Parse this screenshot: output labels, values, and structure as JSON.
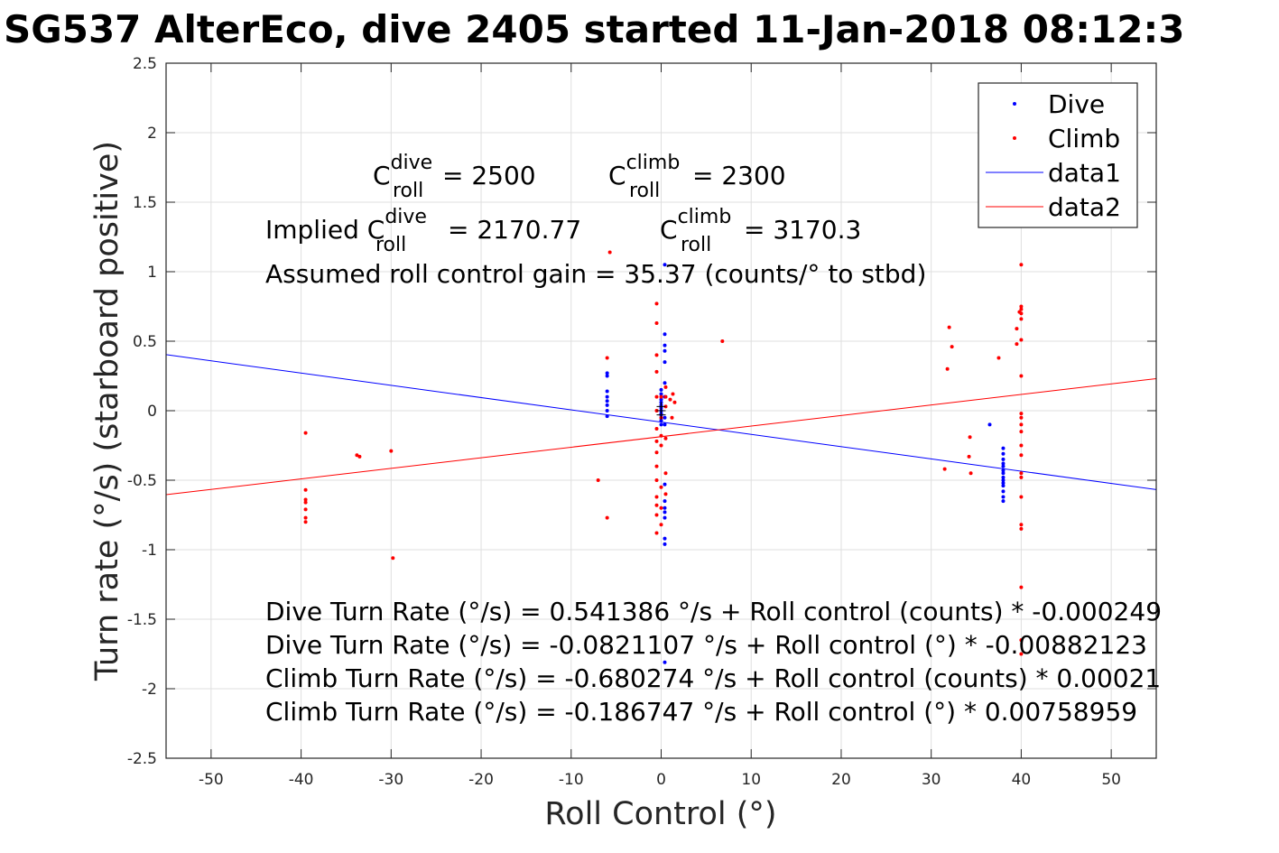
{
  "chart_data": {
    "type": "scatter",
    "title": "SG537 AlterEco, dive 2405 started 11-Jan-2018 08:12:3",
    "xlabel": "Roll Control (°)",
    "ylabel": "Turn rate (°/s) (starboard positive)",
    "xlim": [
      -55,
      55
    ],
    "ylim": [
      -2.5,
      2.5
    ],
    "xticks": [
      -50,
      -40,
      -30,
      -20,
      -10,
      0,
      10,
      20,
      30,
      40,
      50
    ],
    "yticks": [
      -2.5,
      -2,
      -1.5,
      -1,
      -0.5,
      0,
      0.5,
      1,
      1.5,
      2,
      2.5
    ],
    "xtick_labels": [
      "-50",
      "-40",
      "-30",
      "-20",
      "-10",
      "0",
      "10",
      "20",
      "30",
      "40",
      "50"
    ],
    "ytick_labels": [
      "-2.5",
      "-2",
      "-1.5",
      "-1",
      "-0.5",
      "0",
      "0.5",
      "1",
      "1.5",
      "2",
      "2.5"
    ],
    "grid": true,
    "legend_position": "top-right",
    "colors": {
      "dive": "#0000ff",
      "climb": "#ff0000",
      "data1": "#0000ff",
      "data2": "#ff0000",
      "center": "#000000"
    },
    "series": [
      {
        "name": "Dive",
        "kind": "points",
        "color": "#0000ff",
        "points": [
          [
            -6,
            0.27
          ],
          [
            -6,
            0.25
          ],
          [
            -6,
            0.14
          ],
          [
            -6,
            0.1
          ],
          [
            -6,
            0.07
          ],
          [
            -6,
            0.04
          ],
          [
            -6,
            0.0
          ],
          [
            -6,
            -0.04
          ],
          [
            0,
            0.15
          ],
          [
            0,
            0.12
          ],
          [
            0,
            0.08
          ],
          [
            0,
            0.04
          ],
          [
            0,
            0.02
          ],
          [
            0,
            0.0
          ],
          [
            0,
            -0.02
          ],
          [
            0,
            -0.05
          ],
          [
            0,
            -0.07
          ],
          [
            0,
            -0.1
          ],
          [
            0,
            0.06
          ],
          [
            0,
            -0.03
          ],
          [
            0.4,
            1.05
          ],
          [
            0.4,
            0.55
          ],
          [
            0.4,
            0.47
          ],
          [
            0.4,
            0.43
          ],
          [
            0.4,
            0.35
          ],
          [
            0.4,
            0.2
          ],
          [
            0.4,
            0.1
          ],
          [
            0.4,
            -0.05
          ],
          [
            0.4,
            -0.1
          ],
          [
            0.4,
            -0.53
          ],
          [
            0.4,
            -0.65
          ],
          [
            0.4,
            -0.7
          ],
          [
            0.4,
            -0.73
          ],
          [
            0.4,
            -0.77
          ],
          [
            0.4,
            -0.92
          ],
          [
            0.4,
            -0.96
          ],
          [
            0.4,
            -1.81
          ],
          [
            36.5,
            -0.1
          ],
          [
            38,
            -0.27
          ],
          [
            38,
            -0.31
          ],
          [
            38,
            -0.35
          ],
          [
            38,
            -0.38
          ],
          [
            38,
            -0.4
          ],
          [
            38,
            -0.43
          ],
          [
            38,
            -0.45
          ],
          [
            38,
            -0.48
          ],
          [
            38,
            -0.5
          ],
          [
            38,
            -0.52
          ],
          [
            38,
            -0.54
          ],
          [
            38,
            -0.58
          ],
          [
            38,
            -0.62
          ],
          [
            38,
            -0.65
          ]
        ]
      },
      {
        "name": "Climb",
        "kind": "points",
        "color": "#ff0000",
        "points": [
          [
            -39.5,
            -0.16
          ],
          [
            -39.5,
            -0.57
          ],
          [
            -39.5,
            -0.64
          ],
          [
            -39.5,
            -0.66
          ],
          [
            -39.5,
            -0.71
          ],
          [
            -39.5,
            -0.77
          ],
          [
            -39.5,
            -0.8
          ],
          [
            -33.8,
            -0.32
          ],
          [
            -33.5,
            -0.33
          ],
          [
            -30,
            -0.29
          ],
          [
            -29.8,
            -1.06
          ],
          [
            -7,
            -0.5
          ],
          [
            -6,
            0.38
          ],
          [
            -6,
            -0.77
          ],
          [
            -5.7,
            1.14
          ],
          [
            -0.5,
            0.77
          ],
          [
            -0.5,
            0.63
          ],
          [
            -0.5,
            0.4
          ],
          [
            -0.5,
            0.28
          ],
          [
            -0.5,
            0.1
          ],
          [
            -0.5,
            0.0
          ],
          [
            -0.5,
            -0.13
          ],
          [
            -0.5,
            -0.22
          ],
          [
            -0.5,
            -0.3
          ],
          [
            -0.5,
            -0.4
          ],
          [
            -0.5,
            -0.5
          ],
          [
            -0.5,
            -0.62
          ],
          [
            -0.5,
            -0.68
          ],
          [
            -0.5,
            -0.75
          ],
          [
            -0.5,
            -0.88
          ],
          [
            0,
            0.1
          ],
          [
            0,
            -0.05
          ],
          [
            0,
            -0.18
          ],
          [
            0,
            -0.25
          ],
          [
            0,
            -0.55
          ],
          [
            0,
            -0.7
          ],
          [
            0,
            -0.82
          ],
          [
            0.5,
            0.17
          ],
          [
            0.5,
            0.1
          ],
          [
            0.5,
            0.03
          ],
          [
            0.5,
            -0.2
          ],
          [
            0.5,
            -0.45
          ],
          [
            0.5,
            -0.6
          ],
          [
            1.0,
            0.08
          ],
          [
            1.2,
            -0.05
          ],
          [
            1.3,
            0.12
          ],
          [
            1.5,
            0.06
          ],
          [
            6.8,
            0.5
          ],
          [
            31.5,
            -0.42
          ],
          [
            31.8,
            0.3
          ],
          [
            32.0,
            0.6
          ],
          [
            32.3,
            0.46
          ],
          [
            34.2,
            -0.33
          ],
          [
            34.3,
            -0.19
          ],
          [
            34.4,
            -0.45
          ],
          [
            37.5,
            0.38
          ],
          [
            39.5,
            0.59
          ],
          [
            39.5,
            0.48
          ],
          [
            39.8,
            0.71
          ],
          [
            40,
            1.05
          ],
          [
            40,
            0.75
          ],
          [
            40,
            0.73
          ],
          [
            40,
            0.7
          ],
          [
            40,
            0.66
          ],
          [
            40,
            0.51
          ],
          [
            40,
            0.25
          ],
          [
            40,
            -0.02
          ],
          [
            40,
            -0.05
          ],
          [
            40,
            -0.1
          ],
          [
            40,
            -0.15
          ],
          [
            40,
            -0.25
          ],
          [
            40,
            -0.32
          ],
          [
            40,
            -0.45
          ],
          [
            40,
            -0.48
          ],
          [
            40,
            -0.62
          ],
          [
            40,
            -0.82
          ],
          [
            40,
            -0.85
          ],
          [
            40,
            -1.27
          ],
          [
            40,
            -1.65
          ],
          [
            40,
            -1.75
          ]
        ]
      },
      {
        "name": "data1",
        "kind": "line",
        "color": "#0000ff",
        "intercept": -0.0821107,
        "slope": -0.00882123
      },
      {
        "name": "data2",
        "kind": "line",
        "color": "#ff0000",
        "intercept": -0.186747,
        "slope": 0.00758959
      }
    ],
    "center_marks": [
      [
        0,
        0.03
      ],
      [
        0,
        0.0
      ],
      [
        0,
        -0.03
      ]
    ],
    "legend": [
      {
        "label": "Dive",
        "kind": "marker",
        "color": "#0000ff"
      },
      {
        "label": "Climb",
        "kind": "marker",
        "color": "#ff0000"
      },
      {
        "label": "data1",
        "kind": "line",
        "color": "#0000ff"
      },
      {
        "label": "data2",
        "kind": "line",
        "color": "#ff0000"
      }
    ],
    "annotations": {
      "c": "C",
      "croll_dive_sup": "dive",
      "croll_dive_sub": "roll",
      "croll_dive_val": " = 2500",
      "croll_climb_sup": "climb",
      "croll_climb_sub": "roll",
      "croll_climb_val": " = 2300",
      "implied_prefix": "Implied C",
      "implied_dive_sup": "dive",
      "implied_dive_sub": "roll",
      "implied_dive_val": " = 2170.77",
      "implied_climb_sup": "climb",
      "implied_climb_sub": "roll",
      "implied_climb_val": " = 3170.3",
      "gain_line": "Assumed roll control gain = 35.37 (counts/° to stbd)",
      "eq1": "Dive Turn Rate (°/s) = 0.541386 °/s + Roll control (counts) * -0.000249",
      "eq2": "Dive Turn Rate (°/s) = -0.0821107 °/s + Roll control (°) * -0.00882123",
      "eq3": "Climb Turn Rate (°/s) = -0.680274 °/s + Roll control (counts) * 0.00021",
      "eq4": "Climb Turn Rate (°/s) = -0.186747 °/s + Roll control (°) * 0.00758959"
    }
  }
}
